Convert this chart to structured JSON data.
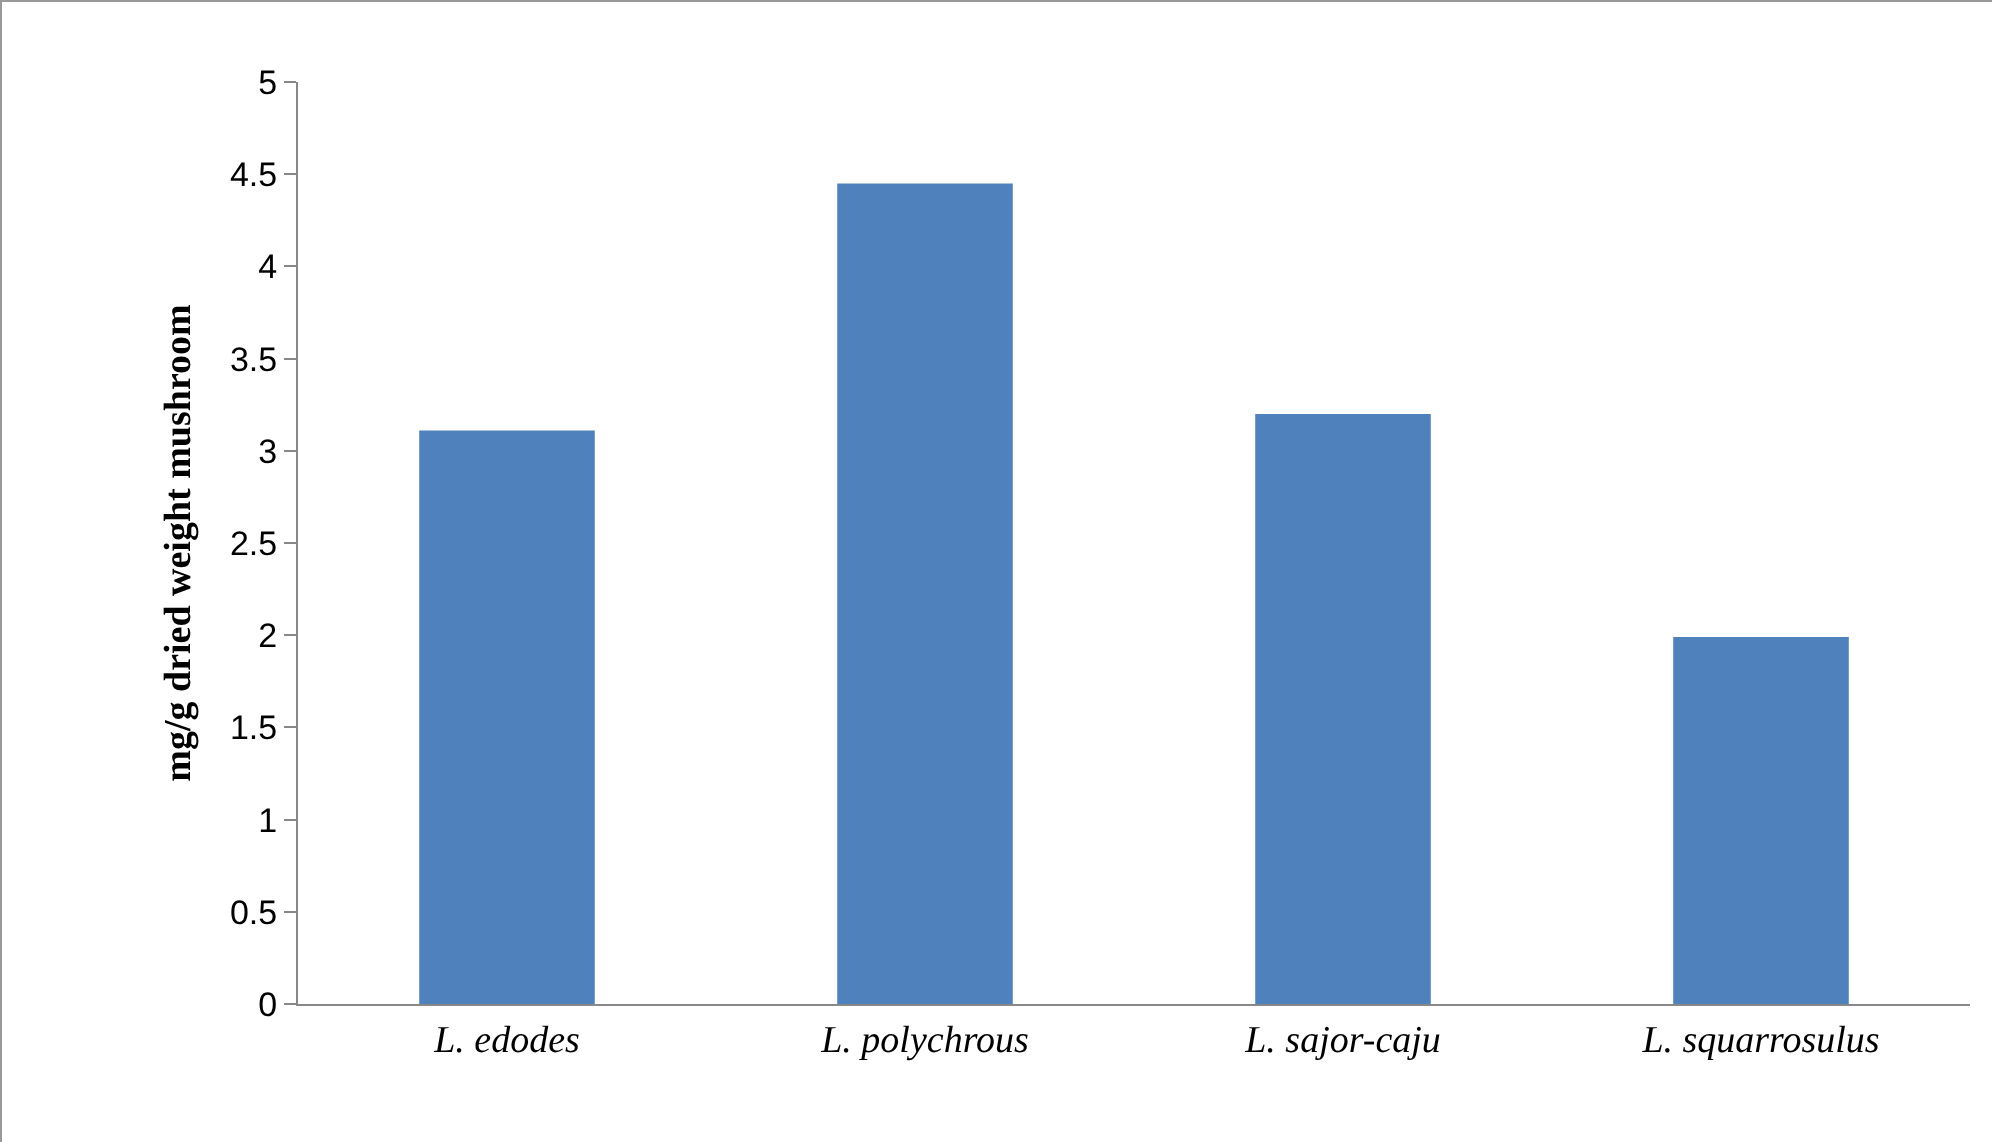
{
  "chart_data": {
    "type": "bar",
    "ylabel": "mg/g dried weight mushroom",
    "categories": [
      "L. edodes",
      "L. polychrous",
      "L. sajor-caju",
      "L. squarrosulus"
    ],
    "values": [
      3.11,
      4.45,
      3.2,
      1.99
    ],
    "color": "#4f81bd",
    "ylim": [
      0,
      5
    ],
    "yticks": [
      0,
      0.5,
      1,
      1.5,
      2,
      2.5,
      3,
      3.5,
      4,
      4.5,
      5
    ],
    "grid": false,
    "legend": false
  }
}
